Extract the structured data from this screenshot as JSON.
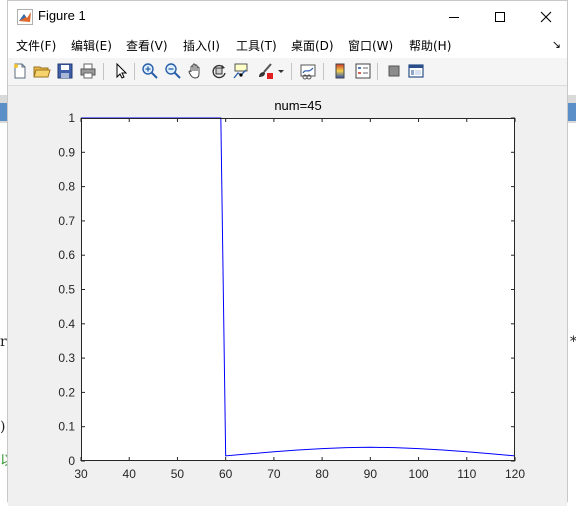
{
  "window": {
    "title": "Figure 1",
    "controls": [
      "minimize",
      "maximize",
      "close"
    ]
  },
  "menu": {
    "items": [
      "文件(F)",
      "编辑(E)",
      "查看(V)",
      "插入(I)",
      "工具(T)",
      "桌面(D)",
      "窗口(W)",
      "帮助(H)"
    ],
    "overflow": "↘"
  },
  "toolbar": {
    "icons": [
      "new-figure-icon",
      "open-icon",
      "save-icon",
      "print-icon",
      "pointer-icon",
      "zoom-in-icon",
      "zoom-out-icon",
      "pan-icon",
      "rotate-3d-icon",
      "data-cursor-icon",
      "brush-icon",
      "brush-dropdown-icon",
      "link-plot-icon",
      "insert-colorbar-icon",
      "insert-legend-icon",
      "hide-plot-tools-icon",
      "show-plot-tools-icon"
    ]
  },
  "background_text": {
    "left_1": "r",
    "left_2": ")",
    "left_3": "以",
    "right_1": "*"
  },
  "chart_data": {
    "type": "line",
    "title": "num=45",
    "xlabel": "",
    "ylabel": "",
    "xlim": [
      30,
      120
    ],
    "ylim": [
      0,
      1
    ],
    "xticks": [
      "30",
      "40",
      "50",
      "60",
      "70",
      "80",
      "90",
      "100",
      "110",
      "120"
    ],
    "yticks": [
      "0",
      "0.1",
      "0.2",
      "0.3",
      "0.4",
      "0.5",
      "0.6",
      "0.7",
      "0.8",
      "0.9",
      "1"
    ],
    "grid": false,
    "line_color": "#0000ff",
    "series": [
      {
        "x": [
          30,
          59,
          60,
          65,
          70,
          75,
          80,
          85,
          90,
          95,
          100,
          105,
          110,
          115,
          120
        ],
        "y": [
          1,
          1,
          0.015,
          0.021,
          0.027,
          0.032,
          0.036,
          0.039,
          0.04,
          0.039,
          0.036,
          0.032,
          0.027,
          0.021,
          0.015
        ]
      }
    ]
  }
}
